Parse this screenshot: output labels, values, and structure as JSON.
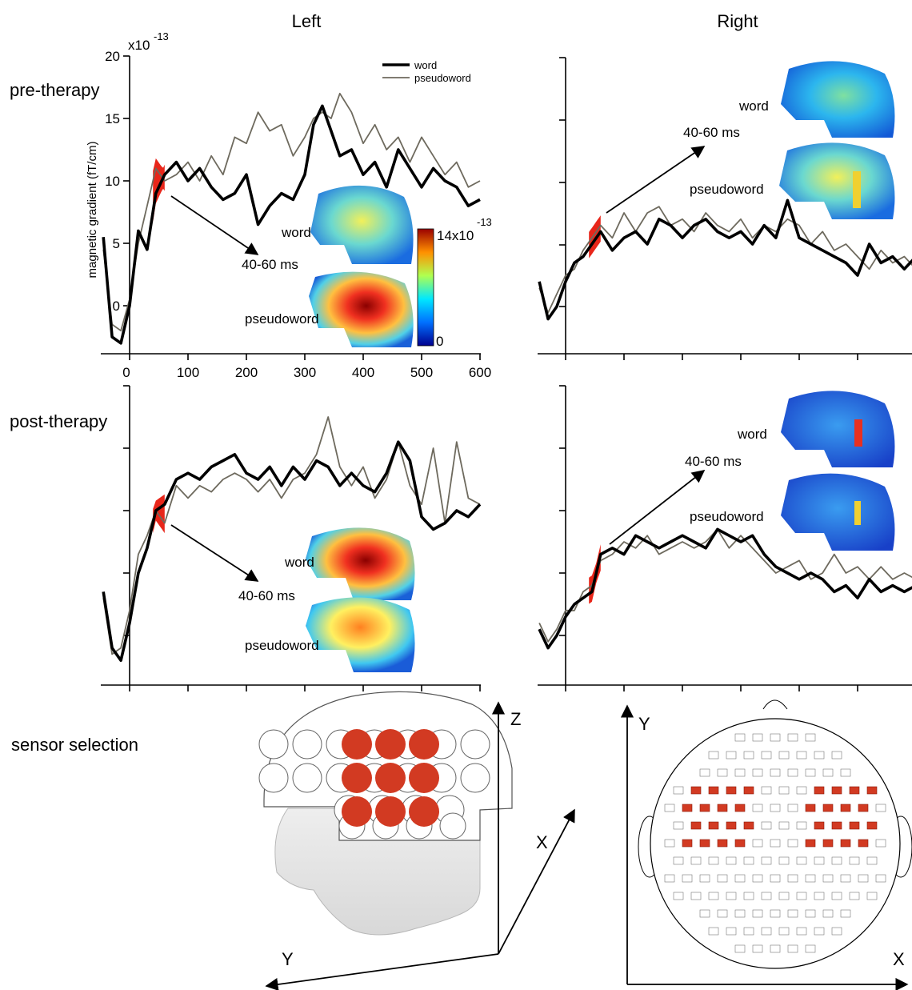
{
  "headers": {
    "left": "Left",
    "right": "Right"
  },
  "rows": {
    "pre": "pre-therapy",
    "post": "post-therapy",
    "sensor": "sensor selection"
  },
  "annotations": {
    "window": "40-60 ms",
    "word": "word",
    "pseudoword": "pseudoword",
    "colorbar_max": "14x10",
    "colorbar_exp": "-13",
    "colorbar_min": "0",
    "axis_exp_base": "x10",
    "axis_exp": "-13"
  },
  "sensor_axes": {
    "z": "Z",
    "x": "X",
    "y": "Y"
  },
  "colors": {
    "word": "#000000",
    "pseudoword": "#6e6a5e",
    "highlight": "#e8261a",
    "selected_sensor": "#d23a22"
  },
  "chart_data": [
    {
      "panel": "pre-therapy-left",
      "type": "line",
      "xlabel": "",
      "ylabel": "magnetic gradient (fT/cm)",
      "xlim": [
        -50,
        600
      ],
      "ylim": [
        -4,
        20
      ],
      "xticks": [
        0,
        100,
        200,
        300,
        400,
        500,
        600
      ],
      "yticks": [
        0,
        5,
        10,
        15,
        20
      ],
      "legend": "top-right",
      "highlight_window": [
        40,
        60
      ],
      "series": [
        {
          "name": "word",
          "x": [
            -45,
            -30,
            -15,
            0,
            15,
            30,
            45,
            60,
            80,
            100,
            120,
            140,
            160,
            180,
            200,
            220,
            240,
            260,
            280,
            300,
            315,
            330,
            345,
            360,
            380,
            400,
            420,
            440,
            460,
            480,
            500,
            520,
            540,
            560,
            580,
            600
          ],
          "y": [
            5.5,
            -2.5,
            -3.0,
            0.0,
            6.0,
            4.5,
            9.0,
            10.5,
            11.5,
            10.0,
            11.0,
            9.5,
            8.5,
            9.0,
            10.5,
            6.5,
            8.0,
            9.0,
            8.5,
            10.5,
            14.5,
            16.0,
            14.0,
            12.0,
            12.5,
            10.5,
            11.5,
            9.5,
            12.5,
            11.0,
            9.5,
            11.0,
            10.0,
            9.5,
            8.0,
            8.5
          ]
        },
        {
          "name": "pseudoword",
          "x": [
            -45,
            -30,
            -15,
            0,
            15,
            30,
            45,
            60,
            80,
            100,
            120,
            140,
            160,
            180,
            200,
            220,
            240,
            260,
            280,
            300,
            315,
            330,
            345,
            360,
            380,
            400,
            420,
            440,
            460,
            480,
            500,
            520,
            540,
            560,
            580,
            600
          ],
          "y": [
            4.5,
            -1.5,
            -2.0,
            0.5,
            5.0,
            8.0,
            11.0,
            10.0,
            10.5,
            11.5,
            10.0,
            12.0,
            10.5,
            13.5,
            13.0,
            15.5,
            14.0,
            14.5,
            12.0,
            13.5,
            15.0,
            15.5,
            15.0,
            17.0,
            15.5,
            13.0,
            14.5,
            12.5,
            13.5,
            11.5,
            13.5,
            12.0,
            10.5,
            11.5,
            9.5,
            10.0
          ]
        }
      ]
    },
    {
      "panel": "pre-therapy-right",
      "type": "line",
      "xlim": [
        -50,
        600
      ],
      "ylim": [
        -4,
        20
      ],
      "highlight_window": [
        40,
        60
      ],
      "series": [
        {
          "name": "word",
          "x": [
            -45,
            -30,
            -15,
            0,
            15,
            30,
            45,
            60,
            80,
            100,
            120,
            140,
            160,
            180,
            200,
            220,
            240,
            260,
            280,
            300,
            320,
            340,
            360,
            380,
            400,
            420,
            440,
            460,
            480,
            500,
            520,
            540,
            560,
            580,
            600
          ],
          "y": [
            2.0,
            -1.0,
            0.0,
            2.0,
            3.5,
            4.0,
            5.0,
            6.0,
            4.5,
            5.5,
            6.0,
            5.0,
            7.0,
            6.5,
            5.5,
            6.5,
            7.0,
            6.0,
            5.5,
            6.0,
            5.0,
            6.5,
            5.5,
            8.5,
            5.5,
            5.0,
            4.5,
            4.0,
            3.5,
            2.5,
            5.0,
            3.5,
            4.0,
            3.0,
            4.0
          ]
        },
        {
          "name": "pseudoword",
          "x": [
            -45,
            -30,
            -15,
            0,
            15,
            30,
            45,
            60,
            80,
            100,
            120,
            140,
            160,
            180,
            200,
            220,
            240,
            260,
            280,
            300,
            320,
            340,
            360,
            380,
            400,
            420,
            440,
            460,
            480,
            500,
            520,
            540,
            560,
            580,
            600
          ],
          "y": [
            1.5,
            -0.5,
            1.0,
            2.5,
            3.0,
            4.5,
            5.5,
            6.5,
            5.5,
            7.5,
            6.0,
            7.5,
            8.0,
            6.5,
            7.0,
            6.0,
            7.5,
            6.5,
            6.0,
            7.0,
            5.5,
            6.5,
            6.0,
            7.0,
            6.5,
            5.0,
            6.0,
            4.5,
            5.0,
            4.0,
            3.0,
            4.5,
            3.5,
            4.0,
            3.0
          ]
        }
      ]
    },
    {
      "panel": "post-therapy-left",
      "type": "line",
      "xlim": [
        -50,
        600
      ],
      "ylim": [
        -4,
        20
      ],
      "highlight_window": [
        40,
        60
      ],
      "series": [
        {
          "name": "word",
          "x": [
            -45,
            -30,
            -15,
            0,
            15,
            30,
            45,
            60,
            80,
            100,
            120,
            140,
            160,
            180,
            200,
            220,
            240,
            260,
            280,
            300,
            320,
            340,
            360,
            380,
            400,
            420,
            440,
            460,
            480,
            500,
            520,
            540,
            560,
            580,
            600
          ],
          "y": [
            3.5,
            -1.0,
            -2.0,
            1.0,
            5.0,
            7.0,
            10.0,
            10.5,
            12.5,
            13.0,
            12.5,
            13.5,
            14.0,
            14.5,
            13.0,
            12.5,
            13.5,
            12.0,
            13.5,
            12.5,
            14.0,
            13.5,
            12.0,
            13.0,
            12.0,
            11.5,
            13.0,
            15.5,
            14.0,
            9.5,
            8.5,
            9.0,
            10.0,
            9.5,
            10.5
          ]
        },
        {
          "name": "pseudoword",
          "x": [
            -45,
            -30,
            -15,
            0,
            15,
            30,
            45,
            60,
            80,
            100,
            120,
            140,
            160,
            180,
            200,
            220,
            240,
            260,
            280,
            300,
            320,
            340,
            360,
            380,
            400,
            420,
            440,
            460,
            480,
            500,
            520,
            540,
            560,
            580,
            600
          ],
          "y": [
            3.0,
            -1.5,
            -1.0,
            2.0,
            6.5,
            8.0,
            10.0,
            9.0,
            12.0,
            11.0,
            12.0,
            11.5,
            12.5,
            13.0,
            12.5,
            11.5,
            12.5,
            11.0,
            12.5,
            13.0,
            14.5,
            17.5,
            13.5,
            12.0,
            13.5,
            11.0,
            12.5,
            15.5,
            12.0,
            10.5,
            15.0,
            9.0,
            15.5,
            11.0,
            10.5
          ]
        }
      ]
    },
    {
      "panel": "post-therapy-right",
      "type": "line",
      "xlim": [
        -50,
        600
      ],
      "ylim": [
        -4,
        20
      ],
      "highlight_window": [
        40,
        60
      ],
      "series": [
        {
          "name": "word",
          "x": [
            -45,
            -30,
            -15,
            0,
            15,
            30,
            45,
            60,
            80,
            100,
            120,
            140,
            160,
            180,
            200,
            220,
            240,
            260,
            280,
            300,
            320,
            340,
            360,
            380,
            400,
            420,
            440,
            460,
            480,
            500,
            520,
            540,
            560,
            580,
            600
          ],
          "y": [
            0.5,
            -1.0,
            0.0,
            1.5,
            2.5,
            3.0,
            3.5,
            6.5,
            7.0,
            6.5,
            8.0,
            7.5,
            7.0,
            7.5,
            8.0,
            7.5,
            7.0,
            8.5,
            8.0,
            7.5,
            8.0,
            6.5,
            5.5,
            5.0,
            4.5,
            5.0,
            4.5,
            3.5,
            4.0,
            3.0,
            4.5,
            3.5,
            4.0,
            3.5,
            4.0
          ]
        },
        {
          "name": "pseudoword",
          "x": [
            -45,
            -30,
            -15,
            0,
            15,
            30,
            45,
            60,
            80,
            100,
            120,
            140,
            160,
            180,
            200,
            220,
            240,
            260,
            280,
            300,
            320,
            340,
            360,
            380,
            400,
            420,
            440,
            460,
            480,
            500,
            520,
            540,
            560,
            580,
            600
          ],
          "y": [
            1.0,
            -0.5,
            0.5,
            2.0,
            2.0,
            3.5,
            4.0,
            6.0,
            6.5,
            7.5,
            7.0,
            8.0,
            6.5,
            7.0,
            7.5,
            7.0,
            7.5,
            8.5,
            7.0,
            8.0,
            7.0,
            6.0,
            5.0,
            5.5,
            6.0,
            4.5,
            5.0,
            6.5,
            5.0,
            5.5,
            4.5,
            5.5,
            4.5,
            5.0,
            4.5
          ]
        }
      ]
    }
  ]
}
